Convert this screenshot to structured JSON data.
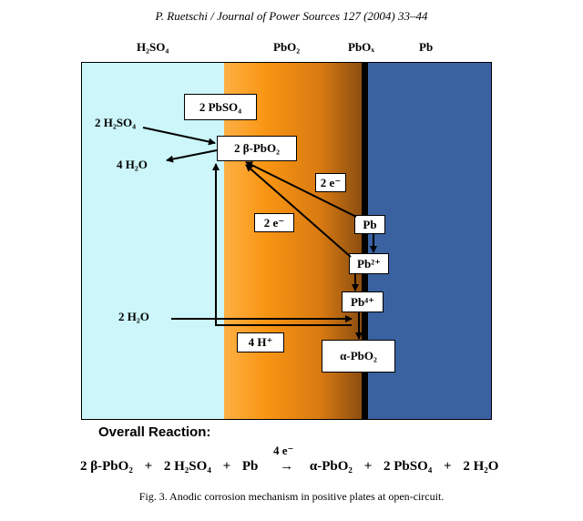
{
  "header": {
    "citation": "P. Ruetschi / Journal of Power Sources 127 (2004) 33–44"
  },
  "zones": [
    {
      "key": "acid",
      "label": "H₂SO₄",
      "color": "#ccf6f9"
    },
    {
      "key": "pbo2",
      "label": "PbO₂",
      "color": "#f99513"
    },
    {
      "key": "pbox",
      "label": "PbOₓ",
      "color": "#000000"
    },
    {
      "key": "pb",
      "label": "Pb",
      "color": "#3b62a0"
    }
  ],
  "boxes": {
    "pbso4": "2 PbSO₄",
    "beta_pbo2": "2 β-PbO₂",
    "e_upper": "2 e⁻",
    "e_lower": "2 e⁻",
    "pb": "Pb",
    "pb2": "Pb²⁺",
    "pb4": "Pb⁴⁺",
    "h_plus": "4 H⁺",
    "alpha_pbo2": "α-PbO₂"
  },
  "labels": {
    "h2so4_in": "2 H₂SO₄",
    "h2o_out": "4 H₂O",
    "h2o_in": "2 H₂O"
  },
  "overall": {
    "title": "Overall Reaction:",
    "electrons": "4 e⁻",
    "equation": [
      "2 β-PbO₂",
      "+",
      "2 H₂SO₄",
      "+",
      "Pb",
      "→",
      "α-PbO₂",
      "+",
      "2 PbSO₄",
      "+",
      "2 H₂O"
    ]
  },
  "caption": "Fig. 3. Anodic corrosion mechanism in positive plates at open-circuit."
}
